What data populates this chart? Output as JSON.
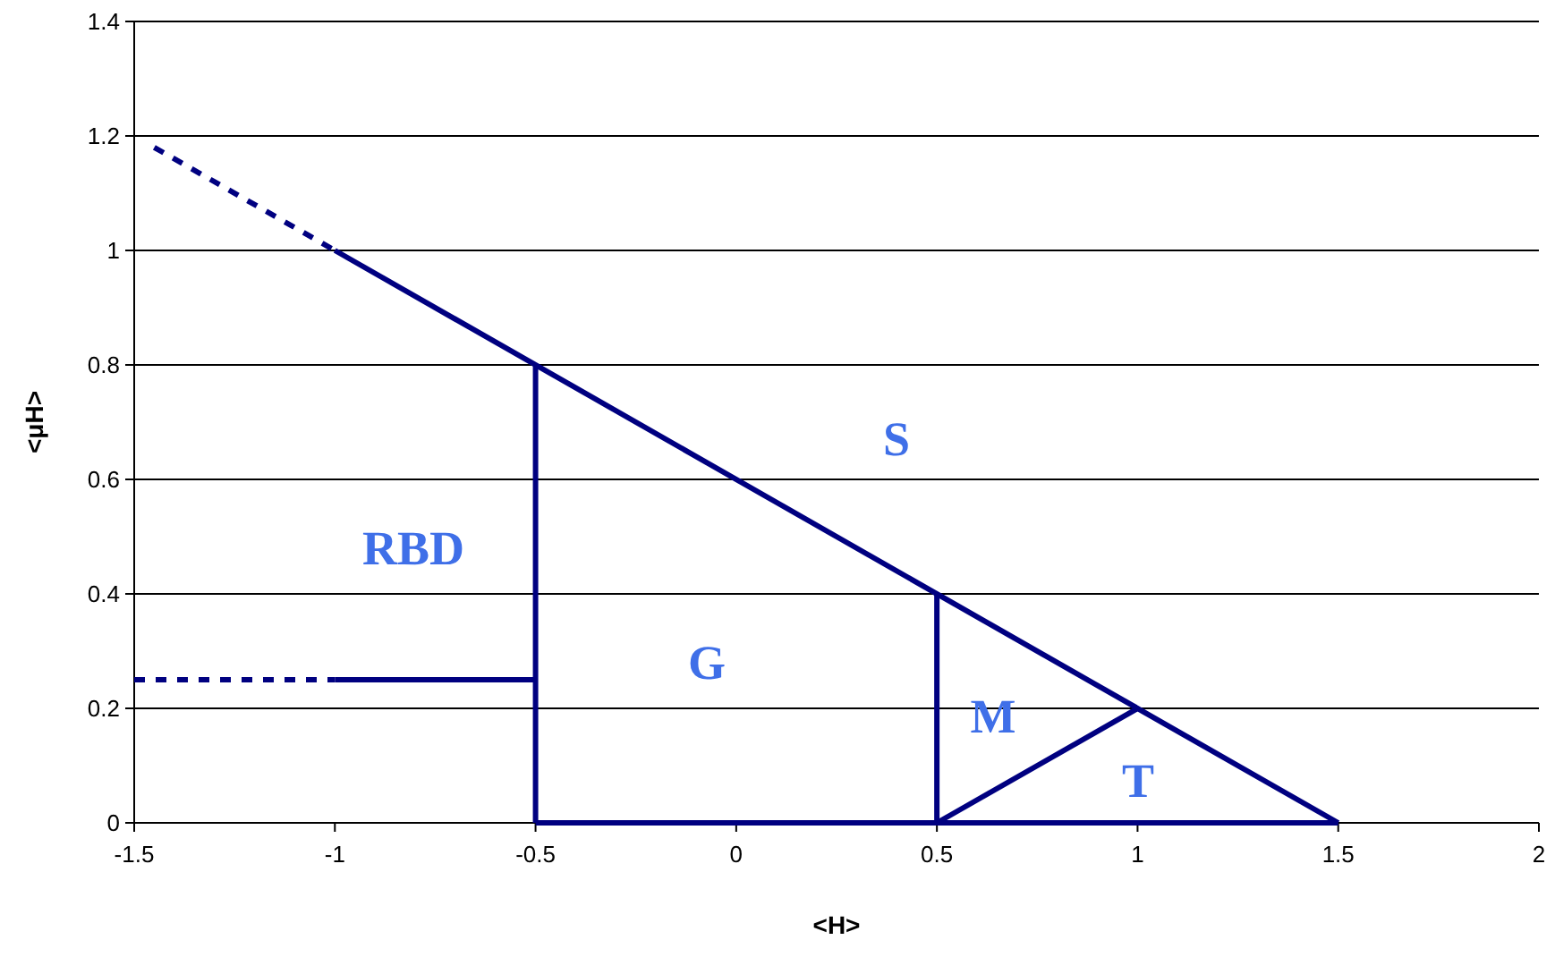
{
  "chart_data": {
    "type": "line",
    "xlabel": "<H>",
    "ylabel": "<μH>",
    "xlim": [
      -1.5,
      2
    ],
    "xticks": [
      -1.5,
      -1,
      -0.5,
      0,
      0.5,
      1,
      1.5,
      2
    ],
    "ylim": [
      0,
      1.4
    ],
    "yticks": [
      0,
      0.2,
      0.4,
      0.6,
      0.8,
      1,
      1.2,
      1.4
    ],
    "grid": "y",
    "series": [
      {
        "color": "#000080",
        "x": [
          -1.45,
          -1
        ],
        "values": [
          1.18,
          1.0
        ],
        "line_style": "dashed"
      },
      {
        "color": "#000080",
        "x": [
          -1,
          1.5
        ],
        "values": [
          1.0,
          0
        ],
        "line_style": "solid"
      },
      {
        "color": "#000080",
        "x": [
          -0.5,
          -0.5
        ],
        "values": [
          0,
          0.8
        ],
        "line_style": "solid"
      },
      {
        "color": "#000080",
        "x": [
          -1.5,
          -1
        ],
        "values": [
          0.25,
          0.25
        ],
        "line_style": "dashed"
      },
      {
        "color": "#000080",
        "x": [
          -1,
          -0.5
        ],
        "values": [
          0.25,
          0.25
        ],
        "line_style": "solid"
      },
      {
        "color": "#000080",
        "x": [
          -0.5,
          1.5
        ],
        "values": [
          0,
          0
        ],
        "line_style": "solid"
      },
      {
        "color": "#000080",
        "x": [
          0.5,
          0.5
        ],
        "values": [
          0,
          0.4
        ],
        "line_style": "solid"
      },
      {
        "color": "#000080",
        "x": [
          0.5,
          1
        ],
        "values": [
          0,
          0.2
        ],
        "line_style": "solid"
      }
    ],
    "annotations": [
      "S",
      "RBD",
      "G",
      "M",
      "T"
    ]
  }
}
